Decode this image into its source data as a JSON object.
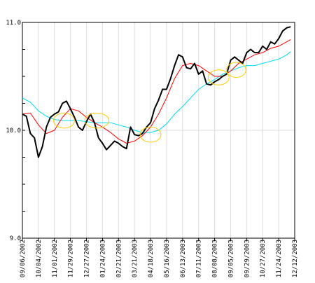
{
  "chart_data": {
    "type": "line",
    "y_axis": {
      "min": 9.0,
      "max": 11.0,
      "ticks": [
        "9.0",
        "10.0",
        "11.0"
      ],
      "minor_step": 0.25
    },
    "x_ticks": [
      "09/06/2002",
      "10/04/2002",
      "11/01/2002",
      "11/29/2002",
      "12/27/2002",
      "01/24/2003",
      "02/21/2003",
      "03/21/2003",
      "04/18/2003",
      "05/16/2003",
      "06/13/2003",
      "07/11/2003",
      "08/08/2003",
      "09/05/2003",
      "09/29/2003",
      "10/27/2003",
      "11/24/2003",
      "12/12/2003"
    ],
    "grid": "vertical",
    "series": [
      {
        "color": "#000000",
        "width": 2,
        "points": [
          [
            0,
            10.15
          ],
          [
            0.25,
            10.13
          ],
          [
            0.5,
            9.97
          ],
          [
            0.75,
            9.93
          ],
          [
            1,
            9.75
          ],
          [
            1.25,
            9.85
          ],
          [
            1.5,
            10.03
          ],
          [
            1.75,
            10.12
          ],
          [
            2,
            10.15
          ],
          [
            2.25,
            10.17
          ],
          [
            2.5,
            10.25
          ],
          [
            2.75,
            10.27
          ],
          [
            3,
            10.2
          ],
          [
            3.25,
            10.12
          ],
          [
            3.5,
            10.03
          ],
          [
            3.75,
            10.0
          ],
          [
            4,
            10.08
          ],
          [
            4.25,
            10.15
          ],
          [
            4.5,
            10.07
          ],
          [
            4.75,
            9.93
          ],
          [
            5,
            9.88
          ],
          [
            5.25,
            9.82
          ],
          [
            5.5,
            9.86
          ],
          [
            5.75,
            9.9
          ],
          [
            6,
            9.88
          ],
          [
            6.25,
            9.85
          ],
          [
            6.5,
            9.83
          ],
          [
            6.75,
            10.03
          ],
          [
            7,
            9.96
          ],
          [
            7.25,
            9.95
          ],
          [
            7.5,
            9.97
          ],
          [
            7.75,
            10.03
          ],
          [
            8,
            10.07
          ],
          [
            8.25,
            10.2
          ],
          [
            8.5,
            10.28
          ],
          [
            8.75,
            10.38
          ],
          [
            9,
            10.38
          ],
          [
            9.25,
            10.48
          ],
          [
            9.5,
            10.6
          ],
          [
            9.75,
            10.7
          ],
          [
            10,
            10.68
          ],
          [
            10.25,
            10.58
          ],
          [
            10.5,
            10.57
          ],
          [
            10.75,
            10.62
          ],
          [
            11,
            10.52
          ],
          [
            11.25,
            10.55
          ],
          [
            11.5,
            10.43
          ],
          [
            11.75,
            10.42
          ],
          [
            12,
            10.45
          ],
          [
            12.25,
            10.47
          ],
          [
            12.5,
            10.5
          ],
          [
            12.75,
            10.52
          ],
          [
            13,
            10.65
          ],
          [
            13.25,
            10.68
          ],
          [
            13.5,
            10.65
          ],
          [
            13.75,
            10.62
          ],
          [
            14,
            10.72
          ],
          [
            14.25,
            10.75
          ],
          [
            14.5,
            10.72
          ],
          [
            14.75,
            10.72
          ],
          [
            15,
            10.78
          ],
          [
            15.25,
            10.75
          ],
          [
            15.5,
            10.82
          ],
          [
            15.75,
            10.8
          ],
          [
            16,
            10.85
          ],
          [
            16.25,
            10.92
          ],
          [
            16.5,
            10.95
          ],
          [
            16.75,
            10.96
          ]
        ]
      },
      {
        "color": "#ff0000",
        "width": 1,
        "points": [
          [
            0,
            10.15
          ],
          [
            0.5,
            10.16
          ],
          [
            1,
            10.05
          ],
          [
            1.5,
            9.97
          ],
          [
            2,
            10.0
          ],
          [
            2.5,
            10.12
          ],
          [
            3,
            10.2
          ],
          [
            3.5,
            10.18
          ],
          [
            4,
            10.12
          ],
          [
            4.5,
            10.07
          ],
          [
            5,
            10.03
          ],
          [
            5.5,
            9.98
          ],
          [
            6,
            9.92
          ],
          [
            6.5,
            9.88
          ],
          [
            7,
            9.9
          ],
          [
            7.5,
            9.95
          ],
          [
            8,
            10.03
          ],
          [
            8.5,
            10.15
          ],
          [
            9,
            10.3
          ],
          [
            9.5,
            10.48
          ],
          [
            10,
            10.6
          ],
          [
            10.5,
            10.62
          ],
          [
            11,
            10.6
          ],
          [
            11.5,
            10.55
          ],
          [
            12,
            10.5
          ],
          [
            12.5,
            10.5
          ],
          [
            13,
            10.55
          ],
          [
            13.5,
            10.62
          ],
          [
            14,
            10.66
          ],
          [
            14.5,
            10.7
          ],
          [
            15,
            10.72
          ],
          [
            15.5,
            10.76
          ],
          [
            16,
            10.78
          ],
          [
            16.5,
            10.82
          ],
          [
            16.75,
            10.84
          ]
        ]
      },
      {
        "color": "#00ddee",
        "width": 1,
        "points": [
          [
            0,
            10.3
          ],
          [
            0.5,
            10.26
          ],
          [
            1,
            10.18
          ],
          [
            1.5,
            10.13
          ],
          [
            2,
            10.1
          ],
          [
            2.5,
            10.09
          ],
          [
            3,
            10.09
          ],
          [
            3.5,
            10.09
          ],
          [
            4,
            10.08
          ],
          [
            4.5,
            10.07
          ],
          [
            5,
            10.07
          ],
          [
            5.5,
            10.07
          ],
          [
            6,
            10.05
          ],
          [
            6.5,
            10.03
          ],
          [
            7,
            10.0
          ],
          [
            7.5,
            9.98
          ],
          [
            8,
            9.98
          ],
          [
            8.5,
            10.0
          ],
          [
            9,
            10.06
          ],
          [
            9.5,
            10.15
          ],
          [
            10,
            10.22
          ],
          [
            10.5,
            10.3
          ],
          [
            11,
            10.38
          ],
          [
            11.5,
            10.43
          ],
          [
            12,
            10.47
          ],
          [
            12.5,
            10.52
          ],
          [
            13,
            10.55
          ],
          [
            13.5,
            10.58
          ],
          [
            14,
            10.6
          ],
          [
            14.5,
            10.6
          ],
          [
            15,
            10.62
          ],
          [
            15.5,
            10.64
          ],
          [
            16,
            10.66
          ],
          [
            16.5,
            10.7
          ],
          [
            16.75,
            10.73
          ]
        ]
      }
    ],
    "ellipses": [
      {
        "x": 2.6,
        "y": 10.09,
        "rx": 0.65,
        "ry": 0.07
      },
      {
        "x": 4.65,
        "y": 10.09,
        "rx": 0.75,
        "ry": 0.07
      },
      {
        "x": 8.0,
        "y": 9.96,
        "rx": 0.65,
        "ry": 0.07
      },
      {
        "x": 12.25,
        "y": 10.49,
        "rx": 0.65,
        "ry": 0.07
      },
      {
        "x": 13.35,
        "y": 10.56,
        "rx": 0.6,
        "ry": 0.07
      }
    ],
    "ellipse_color": "#ffcc00"
  }
}
